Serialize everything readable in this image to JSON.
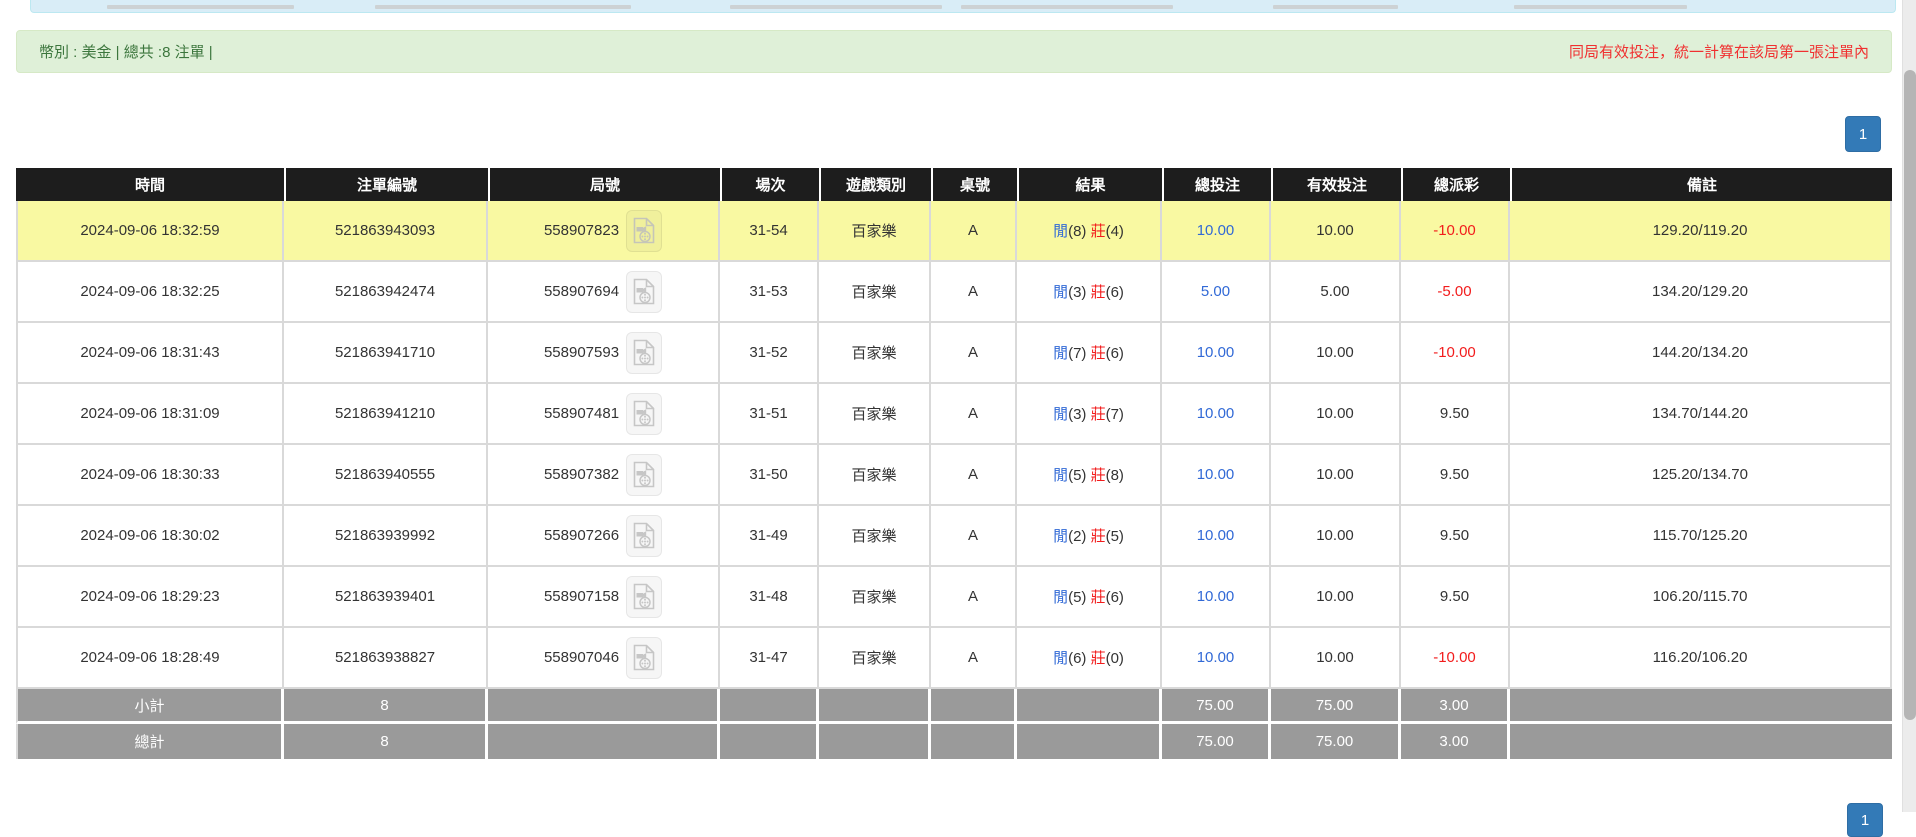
{
  "info_bar": {
    "left_text": "幣別 : 美金 | 總共 :8 注單 |",
    "right_text": "同局有效投注，統一計算在該局第一張注單內"
  },
  "pagination": {
    "top_label": "1",
    "bottom_label": "1"
  },
  "table": {
    "columns": [
      "時間",
      "注單編號",
      "局號",
      "場次",
      "遊戲類別",
      "桌號",
      "結果",
      "總投注",
      "有效投注",
      "總派彩",
      "備註"
    ],
    "result_labels": {
      "player": "閒",
      "banker": "莊"
    },
    "rows": [
      {
        "time": "2024-09-06 18:32:59",
        "bet_id": "521863943093",
        "round_no": "558907823",
        "session": "31-54",
        "game": "百家樂",
        "table_no": "A",
        "player_points": "8",
        "banker_points": "4",
        "total_bet": "10.00",
        "valid_bet": "10.00",
        "payout": "-10.00",
        "remark": "129.20/119.20",
        "highlighted": true
      },
      {
        "time": "2024-09-06 18:32:25",
        "bet_id": "521863942474",
        "round_no": "558907694",
        "session": "31-53",
        "game": "百家樂",
        "table_no": "A",
        "player_points": "3",
        "banker_points": "6",
        "total_bet": "5.00",
        "valid_bet": "5.00",
        "payout": "-5.00",
        "remark": "134.20/129.20",
        "highlighted": false
      },
      {
        "time": "2024-09-06 18:31:43",
        "bet_id": "521863941710",
        "round_no": "558907593",
        "session": "31-52",
        "game": "百家樂",
        "table_no": "A",
        "player_points": "7",
        "banker_points": "6",
        "total_bet": "10.00",
        "valid_bet": "10.00",
        "payout": "-10.00",
        "remark": "144.20/134.20",
        "highlighted": false
      },
      {
        "time": "2024-09-06 18:31:09",
        "bet_id": "521863941210",
        "round_no": "558907481",
        "session": "31-51",
        "game": "百家樂",
        "table_no": "A",
        "player_points": "3",
        "banker_points": "7",
        "total_bet": "10.00",
        "valid_bet": "10.00",
        "payout": "9.50",
        "remark": "134.70/144.20",
        "highlighted": false
      },
      {
        "time": "2024-09-06 18:30:33",
        "bet_id": "521863940555",
        "round_no": "558907382",
        "session": "31-50",
        "game": "百家樂",
        "table_no": "A",
        "player_points": "5",
        "banker_points": "8",
        "total_bet": "10.00",
        "valid_bet": "10.00",
        "payout": "9.50",
        "remark": "125.20/134.70",
        "highlighted": false
      },
      {
        "time": "2024-09-06 18:30:02",
        "bet_id": "521863939992",
        "round_no": "558907266",
        "session": "31-49",
        "game": "百家樂",
        "table_no": "A",
        "player_points": "2",
        "banker_points": "5",
        "total_bet": "10.00",
        "valid_bet": "10.00",
        "payout": "9.50",
        "remark": "115.70/125.20",
        "highlighted": false
      },
      {
        "time": "2024-09-06 18:29:23",
        "bet_id": "521863939401",
        "round_no": "558907158",
        "session": "31-48",
        "game": "百家樂",
        "table_no": "A",
        "player_points": "5",
        "banker_points": "6",
        "total_bet": "10.00",
        "valid_bet": "10.00",
        "payout": "9.50",
        "remark": "106.20/115.70",
        "highlighted": false
      },
      {
        "time": "2024-09-06 18:28:49",
        "bet_id": "521863938827",
        "round_no": "558907046",
        "session": "31-47",
        "game": "百家樂",
        "table_no": "A",
        "player_points": "6",
        "banker_points": "0",
        "total_bet": "10.00",
        "valid_bet": "10.00",
        "payout": "-10.00",
        "remark": "116.20/106.20",
        "highlighted": false
      }
    ],
    "subtotal": {
      "label": "小計",
      "count": "8",
      "total_bet": "75.00",
      "valid_bet": "75.00",
      "payout": "3.00"
    },
    "grand_total": {
      "label": "總計",
      "count": "8",
      "total_bet": "75.00",
      "valid_bet": "75.00",
      "payout": "3.00"
    }
  },
  "icons": {
    "round_video": "video-file-icon"
  },
  "colors": {
    "header_bg": "#1d1d1d",
    "footer_bg": "#9a9a9a",
    "highlight_yellow": "#f9f9a2",
    "link_blue": "#3169d6",
    "negative_red": "#f21c1c",
    "success_green": "#3c763d",
    "banner_red": "#f03030",
    "pagination_blue": "#337ab7",
    "banner_green_bg": "#dff0d8"
  }
}
